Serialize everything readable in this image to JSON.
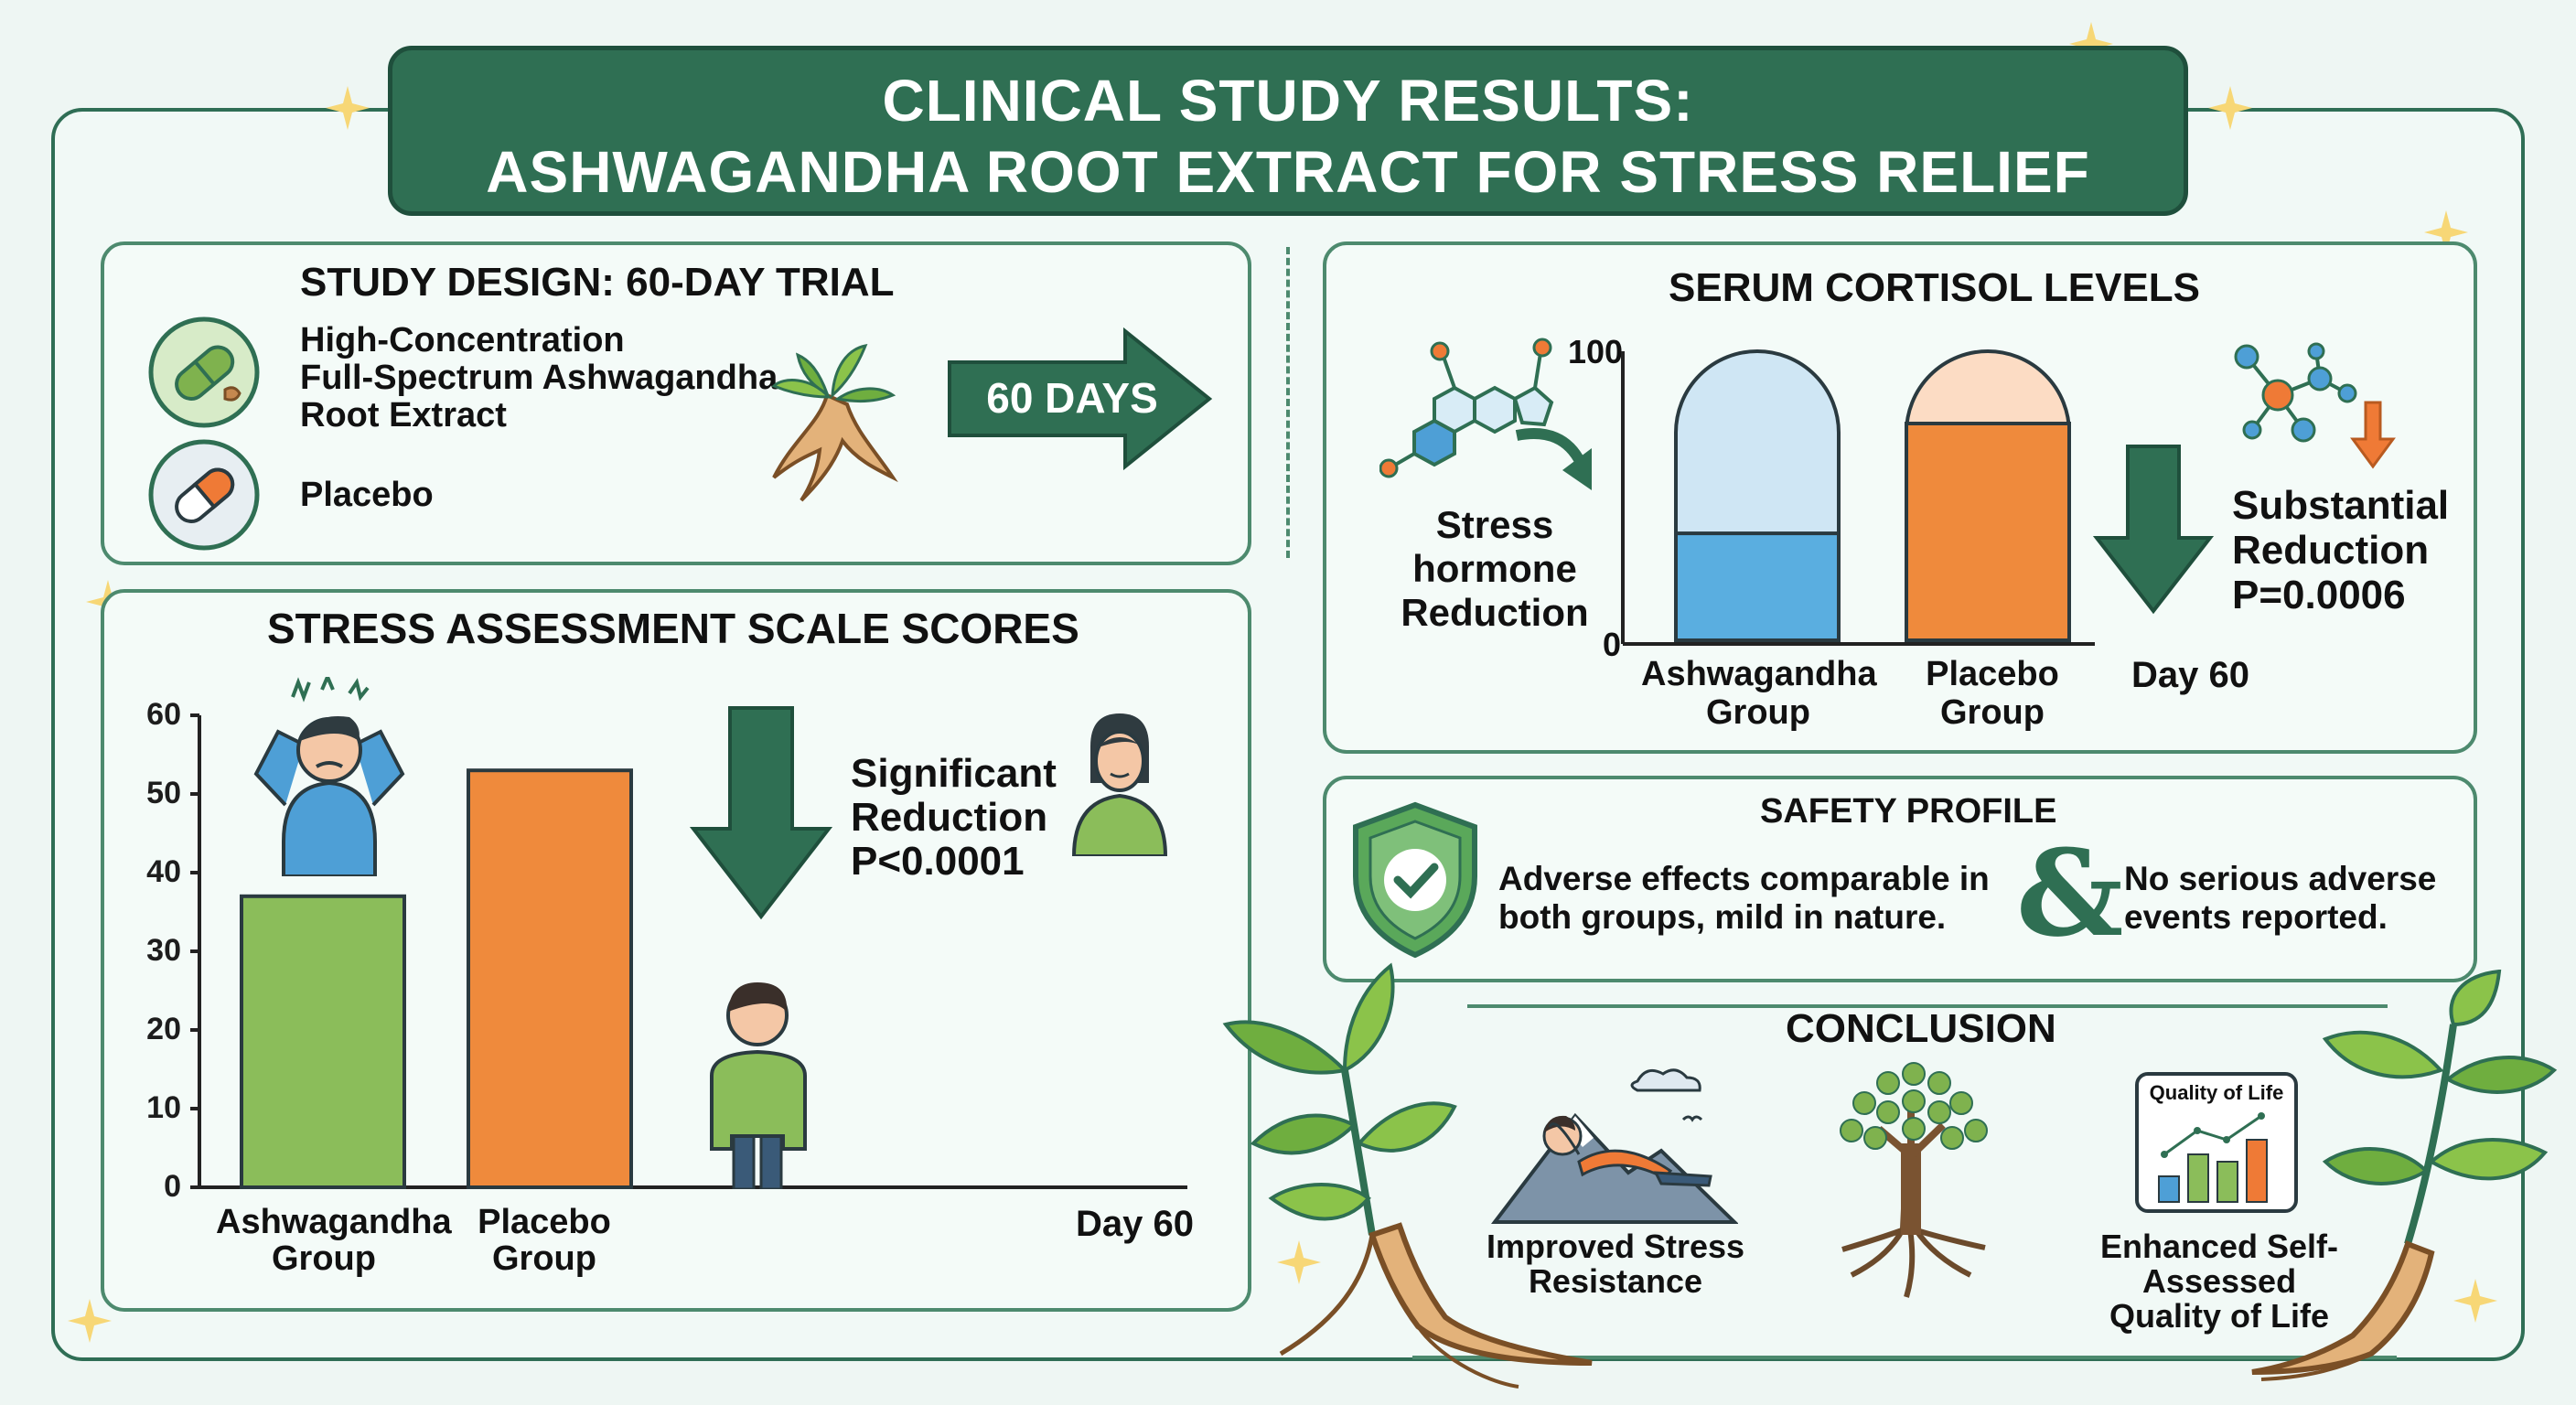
{
  "header": {
    "line1": "CLINICAL STUDY RESULTS:",
    "line2": "ASHWAGANDHA ROOT EXTRACT FOR STRESS RELIEF"
  },
  "study_design": {
    "title": "STUDY DESIGN: 60-DAY TRIAL",
    "treatment_lines": [
      "High-Concentration",
      "Full-Spectrum Ashwagandha",
      "Root Extract"
    ],
    "placebo": "Placebo",
    "arrow_label": "60 DAYS"
  },
  "stress_chart": {
    "title": "STRESS ASSESSMENT SCALE SCORES",
    "y_ticks": [
      "60",
      "50",
      "40",
      "30",
      "20",
      "10",
      "0"
    ],
    "cat1_line1": "Ashwagandha",
    "cat1_line2": "Group",
    "cat2_line1": "Placebo",
    "cat2_line2": "Group",
    "day": "Day 60",
    "note_line1": "Significant",
    "note_line2": "Reduction",
    "note_line3": "P<0.0001"
  },
  "cortisol": {
    "title": "SERUM CORTISOL LEVELS",
    "y_top": "100",
    "y_bottom": "0",
    "left_line1": "Stress hormone",
    "left_line2": "Reduction",
    "cat1_line1": "Ashwagandha",
    "cat1_line2": "Group",
    "cat2_line1": "Placebo",
    "cat2_line2": "Group",
    "day": "Day 60",
    "note_line1": "Substantial",
    "note_line2": "Reduction",
    "note_line3": "P=0.0006"
  },
  "safety": {
    "title": "SAFETY PROFILE",
    "left_line1": "Adverse effects comparable in",
    "left_line2": "both groups, mild in nature.",
    "amp": "&",
    "right_line1": "No serious adverse",
    "right_line2": "events reported."
  },
  "conclusion": {
    "title": "CONCLUSION",
    "item1_line1": "Improved Stress",
    "item1_line2": "Resistance",
    "qol_chart_title": "Quality of Life",
    "item3_line1": "Enhanced Self-Assessed",
    "item3_line2": "Quality of Life"
  },
  "chart_data": [
    {
      "type": "bar",
      "title": "STRESS ASSESSMENT SCALE SCORES",
      "categories": [
        "Ashwagandha Group",
        "Placebo Group"
      ],
      "values": [
        37,
        53
      ],
      "ylim": [
        0,
        60
      ],
      "y_ticks": [
        0,
        10,
        20,
        30,
        40,
        50,
        60
      ],
      "xlabel": "Day 60",
      "colors": [
        "#8bbd5a",
        "#ef8a3c"
      ]
    },
    {
      "type": "bar",
      "title": "SERUM CORTISOL LEVELS",
      "categories": [
        "Ashwagandha Group",
        "Placebo Group"
      ],
      "values": [
        37,
        75
      ],
      "ylim": [
        0,
        100
      ],
      "xlabel": "Day 60",
      "colors": [
        "#5aaee0",
        "#ef8a3c"
      ]
    }
  ],
  "colors": {
    "brand_green": "#2f6f53",
    "panel_border": "#4d8a6e",
    "ashwagandha_green": "#8bbd5a",
    "placebo_orange": "#ef8a3c",
    "cortisol_blue": "#5aaee0"
  }
}
